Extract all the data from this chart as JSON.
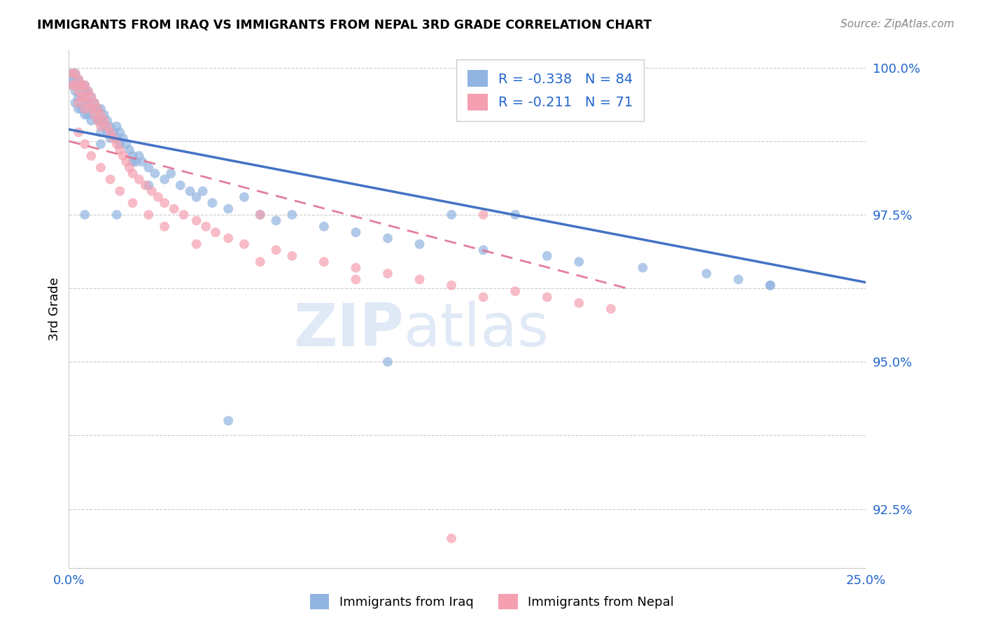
{
  "title": "IMMIGRANTS FROM IRAQ VS IMMIGRANTS FROM NEPAL 3RD GRADE CORRELATION CHART",
  "source": "Source: ZipAtlas.com",
  "ylabel": "3rd Grade",
  "xlim": [
    0.0,
    0.25
  ],
  "ylim": [
    0.915,
    1.003
  ],
  "ytick_positions": [
    0.925,
    0.9375,
    0.95,
    0.9625,
    0.975,
    0.9875,
    1.0
  ],
  "ytick_labels": [
    "92.5%",
    "",
    "95.0%",
    "",
    "97.5%",
    "",
    "100.0%"
  ],
  "xtick_positions": [
    0.0,
    0.05,
    0.1,
    0.15,
    0.2,
    0.25
  ],
  "xtick_labels": [
    "0.0%",
    "",
    "",
    "",
    "",
    "25.0%"
  ],
  "legend_iraq_R": "-0.338",
  "legend_iraq_N": "84",
  "legend_nepal_R": "-0.211",
  "legend_nepal_N": "71",
  "iraq_color": "#92b4e0",
  "nepal_color": "#f4a0b0",
  "iraq_line_color": "#4472c4",
  "nepal_line_color": "#e07090",
  "iraq_line_x0": 0.0,
  "iraq_line_y0": 0.9895,
  "iraq_line_x1": 0.25,
  "iraq_line_y1": 0.9635,
  "nepal_line_x0": 0.0,
  "nepal_line_y0": 0.9875,
  "nepal_line_x1": 0.175,
  "nepal_line_y1": 0.9625,
  "iraq_x": [
    0.001,
    0.001,
    0.001,
    0.002,
    0.002,
    0.002,
    0.002,
    0.003,
    0.003,
    0.003,
    0.003,
    0.004,
    0.004,
    0.004,
    0.005,
    0.005,
    0.005,
    0.005,
    0.006,
    0.006,
    0.006,
    0.007,
    0.007,
    0.007,
    0.008,
    0.008,
    0.009,
    0.009,
    0.01,
    0.01,
    0.01,
    0.011,
    0.011,
    0.012,
    0.012,
    0.013,
    0.013,
    0.014,
    0.015,
    0.015,
    0.016,
    0.016,
    0.017,
    0.018,
    0.019,
    0.02,
    0.021,
    0.022,
    0.023,
    0.025,
    0.027,
    0.03,
    0.032,
    0.035,
    0.038,
    0.04,
    0.042,
    0.045,
    0.05,
    0.055,
    0.06,
    0.065,
    0.07,
    0.08,
    0.09,
    0.1,
    0.11,
    0.12,
    0.13,
    0.14,
    0.15,
    0.16,
    0.18,
    0.2,
    0.21,
    0.22,
    0.005,
    0.01,
    0.015,
    0.02,
    0.025,
    0.05,
    0.1,
    0.22
  ],
  "iraq_y": [
    0.999,
    0.998,
    0.997,
    0.999,
    0.998,
    0.996,
    0.994,
    0.998,
    0.997,
    0.995,
    0.993,
    0.997,
    0.995,
    0.993,
    0.997,
    0.996,
    0.994,
    0.992,
    0.996,
    0.994,
    0.992,
    0.995,
    0.993,
    0.991,
    0.994,
    0.992,
    0.993,
    0.991,
    0.993,
    0.991,
    0.989,
    0.992,
    0.99,
    0.991,
    0.989,
    0.99,
    0.988,
    0.989,
    0.99,
    0.988,
    0.989,
    0.987,
    0.988,
    0.987,
    0.986,
    0.985,
    0.984,
    0.985,
    0.984,
    0.983,
    0.982,
    0.981,
    0.982,
    0.98,
    0.979,
    0.978,
    0.979,
    0.977,
    0.976,
    0.978,
    0.975,
    0.974,
    0.975,
    0.973,
    0.972,
    0.971,
    0.97,
    0.975,
    0.969,
    0.975,
    0.968,
    0.967,
    0.966,
    0.965,
    0.964,
    0.963,
    0.975,
    0.987,
    0.975,
    0.984,
    0.98,
    0.94,
    0.95,
    0.963
  ],
  "nepal_x": [
    0.001,
    0.001,
    0.002,
    0.002,
    0.003,
    0.003,
    0.003,
    0.004,
    0.004,
    0.005,
    0.005,
    0.005,
    0.006,
    0.006,
    0.007,
    0.007,
    0.008,
    0.008,
    0.009,
    0.009,
    0.01,
    0.01,
    0.011,
    0.012,
    0.013,
    0.014,
    0.015,
    0.016,
    0.017,
    0.018,
    0.019,
    0.02,
    0.022,
    0.024,
    0.026,
    0.028,
    0.03,
    0.033,
    0.036,
    0.04,
    0.043,
    0.046,
    0.05,
    0.055,
    0.06,
    0.065,
    0.07,
    0.08,
    0.09,
    0.1,
    0.11,
    0.12,
    0.13,
    0.14,
    0.15,
    0.16,
    0.17,
    0.003,
    0.005,
    0.007,
    0.01,
    0.013,
    0.016,
    0.02,
    0.025,
    0.03,
    0.04,
    0.06,
    0.09,
    0.13,
    0.12
  ],
  "nepal_y": [
    0.999,
    0.997,
    0.999,
    0.997,
    0.998,
    0.996,
    0.994,
    0.997,
    0.995,
    0.997,
    0.995,
    0.993,
    0.996,
    0.994,
    0.995,
    0.993,
    0.994,
    0.992,
    0.993,
    0.991,
    0.992,
    0.99,
    0.991,
    0.99,
    0.989,
    0.988,
    0.987,
    0.986,
    0.985,
    0.984,
    0.983,
    0.982,
    0.981,
    0.98,
    0.979,
    0.978,
    0.977,
    0.976,
    0.975,
    0.974,
    0.973,
    0.972,
    0.971,
    0.97,
    0.975,
    0.969,
    0.968,
    0.967,
    0.966,
    0.965,
    0.964,
    0.963,
    0.975,
    0.962,
    0.961,
    0.96,
    0.959,
    0.989,
    0.987,
    0.985,
    0.983,
    0.981,
    0.979,
    0.977,
    0.975,
    0.973,
    0.97,
    0.967,
    0.964,
    0.961,
    0.92
  ]
}
